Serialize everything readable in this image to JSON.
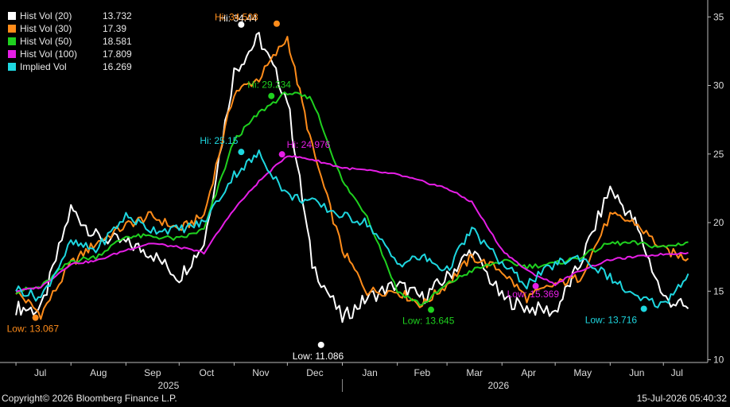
{
  "chart_data": {
    "type": "line",
    "x_dates": [
      "2024-07-01",
      "2024-07-15",
      "2024-08-01",
      "2024-08-15",
      "2024-09-01",
      "2024-09-15",
      "2024-10-01",
      "2024-10-15",
      "2024-11-01",
      "2024-11-15",
      "2024-12-01",
      "2024-12-15",
      "2025-01-01",
      "2025-01-15",
      "2025-02-01",
      "2025-02-15",
      "2025-03-01",
      "2025-03-15",
      "2025-04-01",
      "2025-04-15",
      "2025-05-01",
      "2025-05-15",
      "2025-06-01",
      "2025-06-15",
      "2025-07-01",
      "2025-07-15"
    ],
    "ylim": [
      9.8,
      36
    ],
    "y_ticks": [
      10,
      15,
      20,
      25,
      30,
      35
    ],
    "series": [
      {
        "name": "Hist Vol (20)",
        "last": "13.732",
        "color": "#ffffff",
        "values": [
          13.8,
          13.6,
          21.0,
          19.0,
          18.5,
          17.8,
          16.0,
          18.5,
          31.0,
          33.5,
          29.0,
          17.0,
          13.0,
          14.5,
          15.5,
          14.5,
          16.0,
          18.0,
          14.5,
          13.8,
          13.5,
          17.0,
          22.5,
          20.0,
          14.5,
          13.732
        ]
      },
      {
        "name": "Hist Vol (30)",
        "last": "17.39",
        "color": "#ff8c1a",
        "values": [
          15.0,
          13.3,
          17.0,
          18.5,
          19.8,
          20.5,
          19.5,
          20.5,
          29.5,
          30.5,
          33.5,
          25.5,
          18.0,
          15.0,
          15.0,
          14.0,
          15.5,
          17.5,
          16.5,
          14.5,
          15.5,
          16.0,
          20.5,
          20.0,
          18.0,
          17.39
        ]
      },
      {
        "name": "Hist Vol (50)",
        "last": "18.581",
        "color": "#1fd11f",
        "values": [
          15.0,
          15.3,
          17.2,
          17.5,
          19.0,
          19.0,
          18.8,
          19.5,
          26.0,
          28.0,
          29.5,
          29.0,
          23.0,
          20.5,
          15.0,
          14.0,
          15.5,
          16.5,
          17.2,
          16.8,
          17.0,
          17.5,
          18.5,
          18.5,
          18.2,
          18.581
        ]
      },
      {
        "name": "Hist Vol (100)",
        "last": "17.809",
        "color": "#e61ee6",
        "values": [
          15.0,
          15.3,
          17.0,
          17.2,
          18.0,
          18.5,
          18.2,
          17.8,
          21.0,
          23.0,
          24.9,
          24.6,
          24.0,
          23.8,
          23.5,
          23.0,
          22.5,
          21.5,
          18.0,
          16.5,
          15.5,
          16.5,
          17.3,
          17.5,
          17.7,
          17.809
        ]
      },
      {
        "name": "Implied Vol",
        "last": "16.269",
        "color": "#1ed7e0",
        "values": [
          15.2,
          14.5,
          18.5,
          18.0,
          20.5,
          19.5,
          19.5,
          20.0,
          23.5,
          25.0,
          22.0,
          21.5,
          20.5,
          20.0,
          17.0,
          17.5,
          16.5,
          19.5,
          17.0,
          15.5,
          17.0,
          17.5,
          16.0,
          14.5,
          14.0,
          16.269
        ]
      }
    ],
    "annotations": [
      {
        "label": "Hi: 34.44",
        "date": "2024-11-05",
        "value": 34.44,
        "series": 0
      },
      {
        "label": "Hi: 34.508",
        "date": "2024-11-25",
        "value": 34.508,
        "series": 1
      },
      {
        "label": "Hi: 29.234",
        "date": "2024-11-22",
        "value": 29.234,
        "series": 2
      },
      {
        "label": "Hi: 25.15",
        "date": "2024-11-05",
        "value": 25.15,
        "series": 4
      },
      {
        "label": "Hi: 24.976",
        "date": "2024-11-28",
        "value": 24.976,
        "series": 3
      },
      {
        "label": "Low: 13.067",
        "date": "2024-07-12",
        "value": 13.067,
        "series": 1
      },
      {
        "label": "Low: 11.086",
        "date": "2024-12-20",
        "value": 11.086,
        "series": 0
      },
      {
        "label": "Low: 13.645",
        "date": "2025-02-20",
        "value": 13.645,
        "series": 2
      },
      {
        "label": "Low: 15.369",
        "date": "2025-04-20",
        "value": 15.369,
        "series": 3
      },
      {
        "label": "Low: 13.716",
        "date": "2025-06-20",
        "value": 13.716,
        "series": 4
      }
    ],
    "x_month_labels": [
      "Jul",
      "Aug",
      "Sep",
      "Oct",
      "Nov",
      "Dec",
      "Jan",
      "Feb",
      "Mar",
      "Apr",
      "May",
      "Jun",
      "Jul"
    ],
    "x_year_labels": [
      "2025",
      "2026"
    ],
    "grid": false,
    "legend_placement": "top-left"
  },
  "footer": {
    "copyright": "Copyright© 2026 Bloomberg Finance L.P.",
    "timestamp": "15-Jul-2026 05:40:32"
  }
}
